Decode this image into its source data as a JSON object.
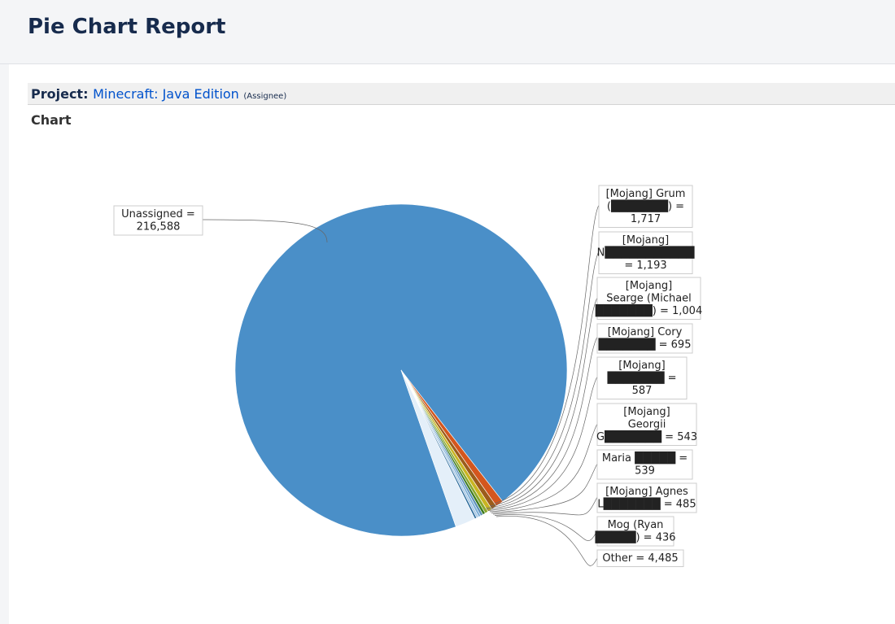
{
  "header": {
    "title": "Pie Chart Report"
  },
  "project": {
    "prefix": "Project:",
    "name": "Minecraft: Java Edition",
    "statistic": "(Assignee)"
  },
  "chart_heading": "Chart",
  "chart_data": {
    "type": "pie",
    "slices": [
      {
        "label_lines": [
          "Unassigned =",
          " 216,588"
        ],
        "value": 216588,
        "color": "#4a8fc8"
      },
      {
        "label_lines": [
          "[Mojang] Grum",
          "(███████) =",
          "1,717"
        ],
        "value": 1717,
        "color": "#d4561e"
      },
      {
        "label_lines": [
          "[Mojang]",
          "N███████████",
          "= 1,193"
        ],
        "value": 1193,
        "color": "#9c5c1b"
      },
      {
        "label_lines": [
          "[Mojang]",
          "Searge (Michael",
          "███████) = 1,004"
        ],
        "value": 1004,
        "color": "#c9b422"
      },
      {
        "label_lines": [
          "[Mojang] Cory",
          "███████ = 695"
        ],
        "value": 695,
        "color": "#8aa82c"
      },
      {
        "label_lines": [
          "[Mojang]",
          "███████ = ",
          "587"
        ],
        "value": 587,
        "color": "#3d7a1f"
      },
      {
        "label_lines": [
          "[Mojang]",
          "Georgii",
          "G███████ = 543"
        ],
        "value": 543,
        "color": "#5c8fb8"
      },
      {
        "label_lines": [
          "Maria █████ =",
          "539"
        ],
        "value": 539,
        "color": "#7fb0d8"
      },
      {
        "label_lines": [
          "[Mojang] Agnes",
          "L███████ = 485"
        ],
        "value": 485,
        "color": "#a8c8e4"
      },
      {
        "label_lines": [
          "Mog (Ryan",
          "█████) = 436"
        ],
        "value": 436,
        "color": "#2f6e9e"
      },
      {
        "label_lines": [
          "Other = 4,485"
        ],
        "value": 4485,
        "color": "#e4eff9"
      }
    ]
  }
}
